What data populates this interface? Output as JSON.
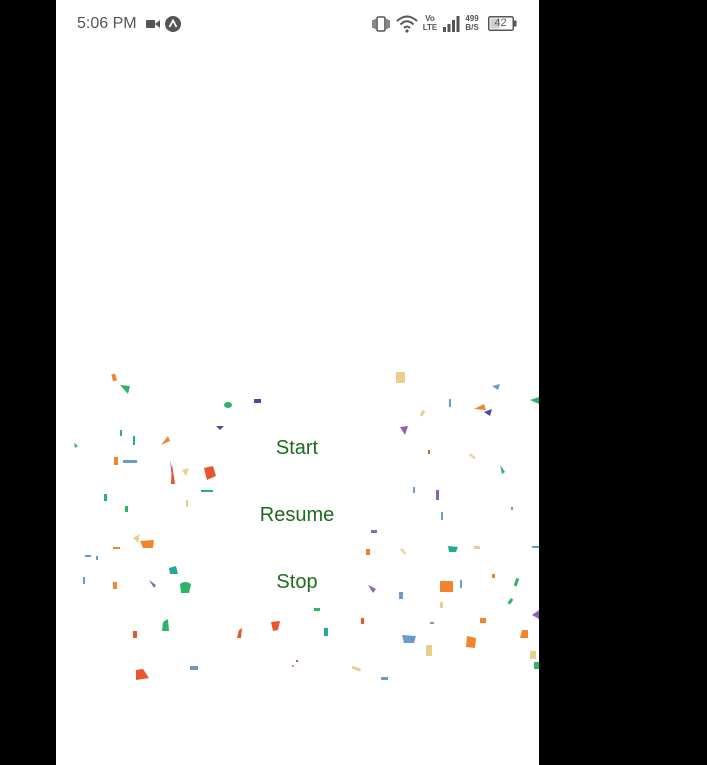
{
  "status_bar": {
    "time": "5:06 PM",
    "volte_top": "Vo",
    "volte_bottom": "LTE",
    "net_speed_value": "499",
    "net_speed_unit": "B/S",
    "battery_level": "42",
    "icons": [
      "video-camera-icon",
      "app-notification-icon",
      "vibrate-icon",
      "wifi-icon",
      "volte-icon",
      "signal-icon",
      "battery-icon"
    ]
  },
  "buttons": {
    "start": "Start",
    "resume": "Resume",
    "stop": "Stop"
  },
  "colors": {
    "button_text": "#1e6b1e",
    "background": "#ffffff",
    "frame": "#000000",
    "confetti": [
      "#e8552f",
      "#f0852d",
      "#2eb36b",
      "#8b63b5",
      "#e8d08a",
      "#6a9bc9",
      "#22a99a",
      "#4a4aa0"
    ]
  }
}
